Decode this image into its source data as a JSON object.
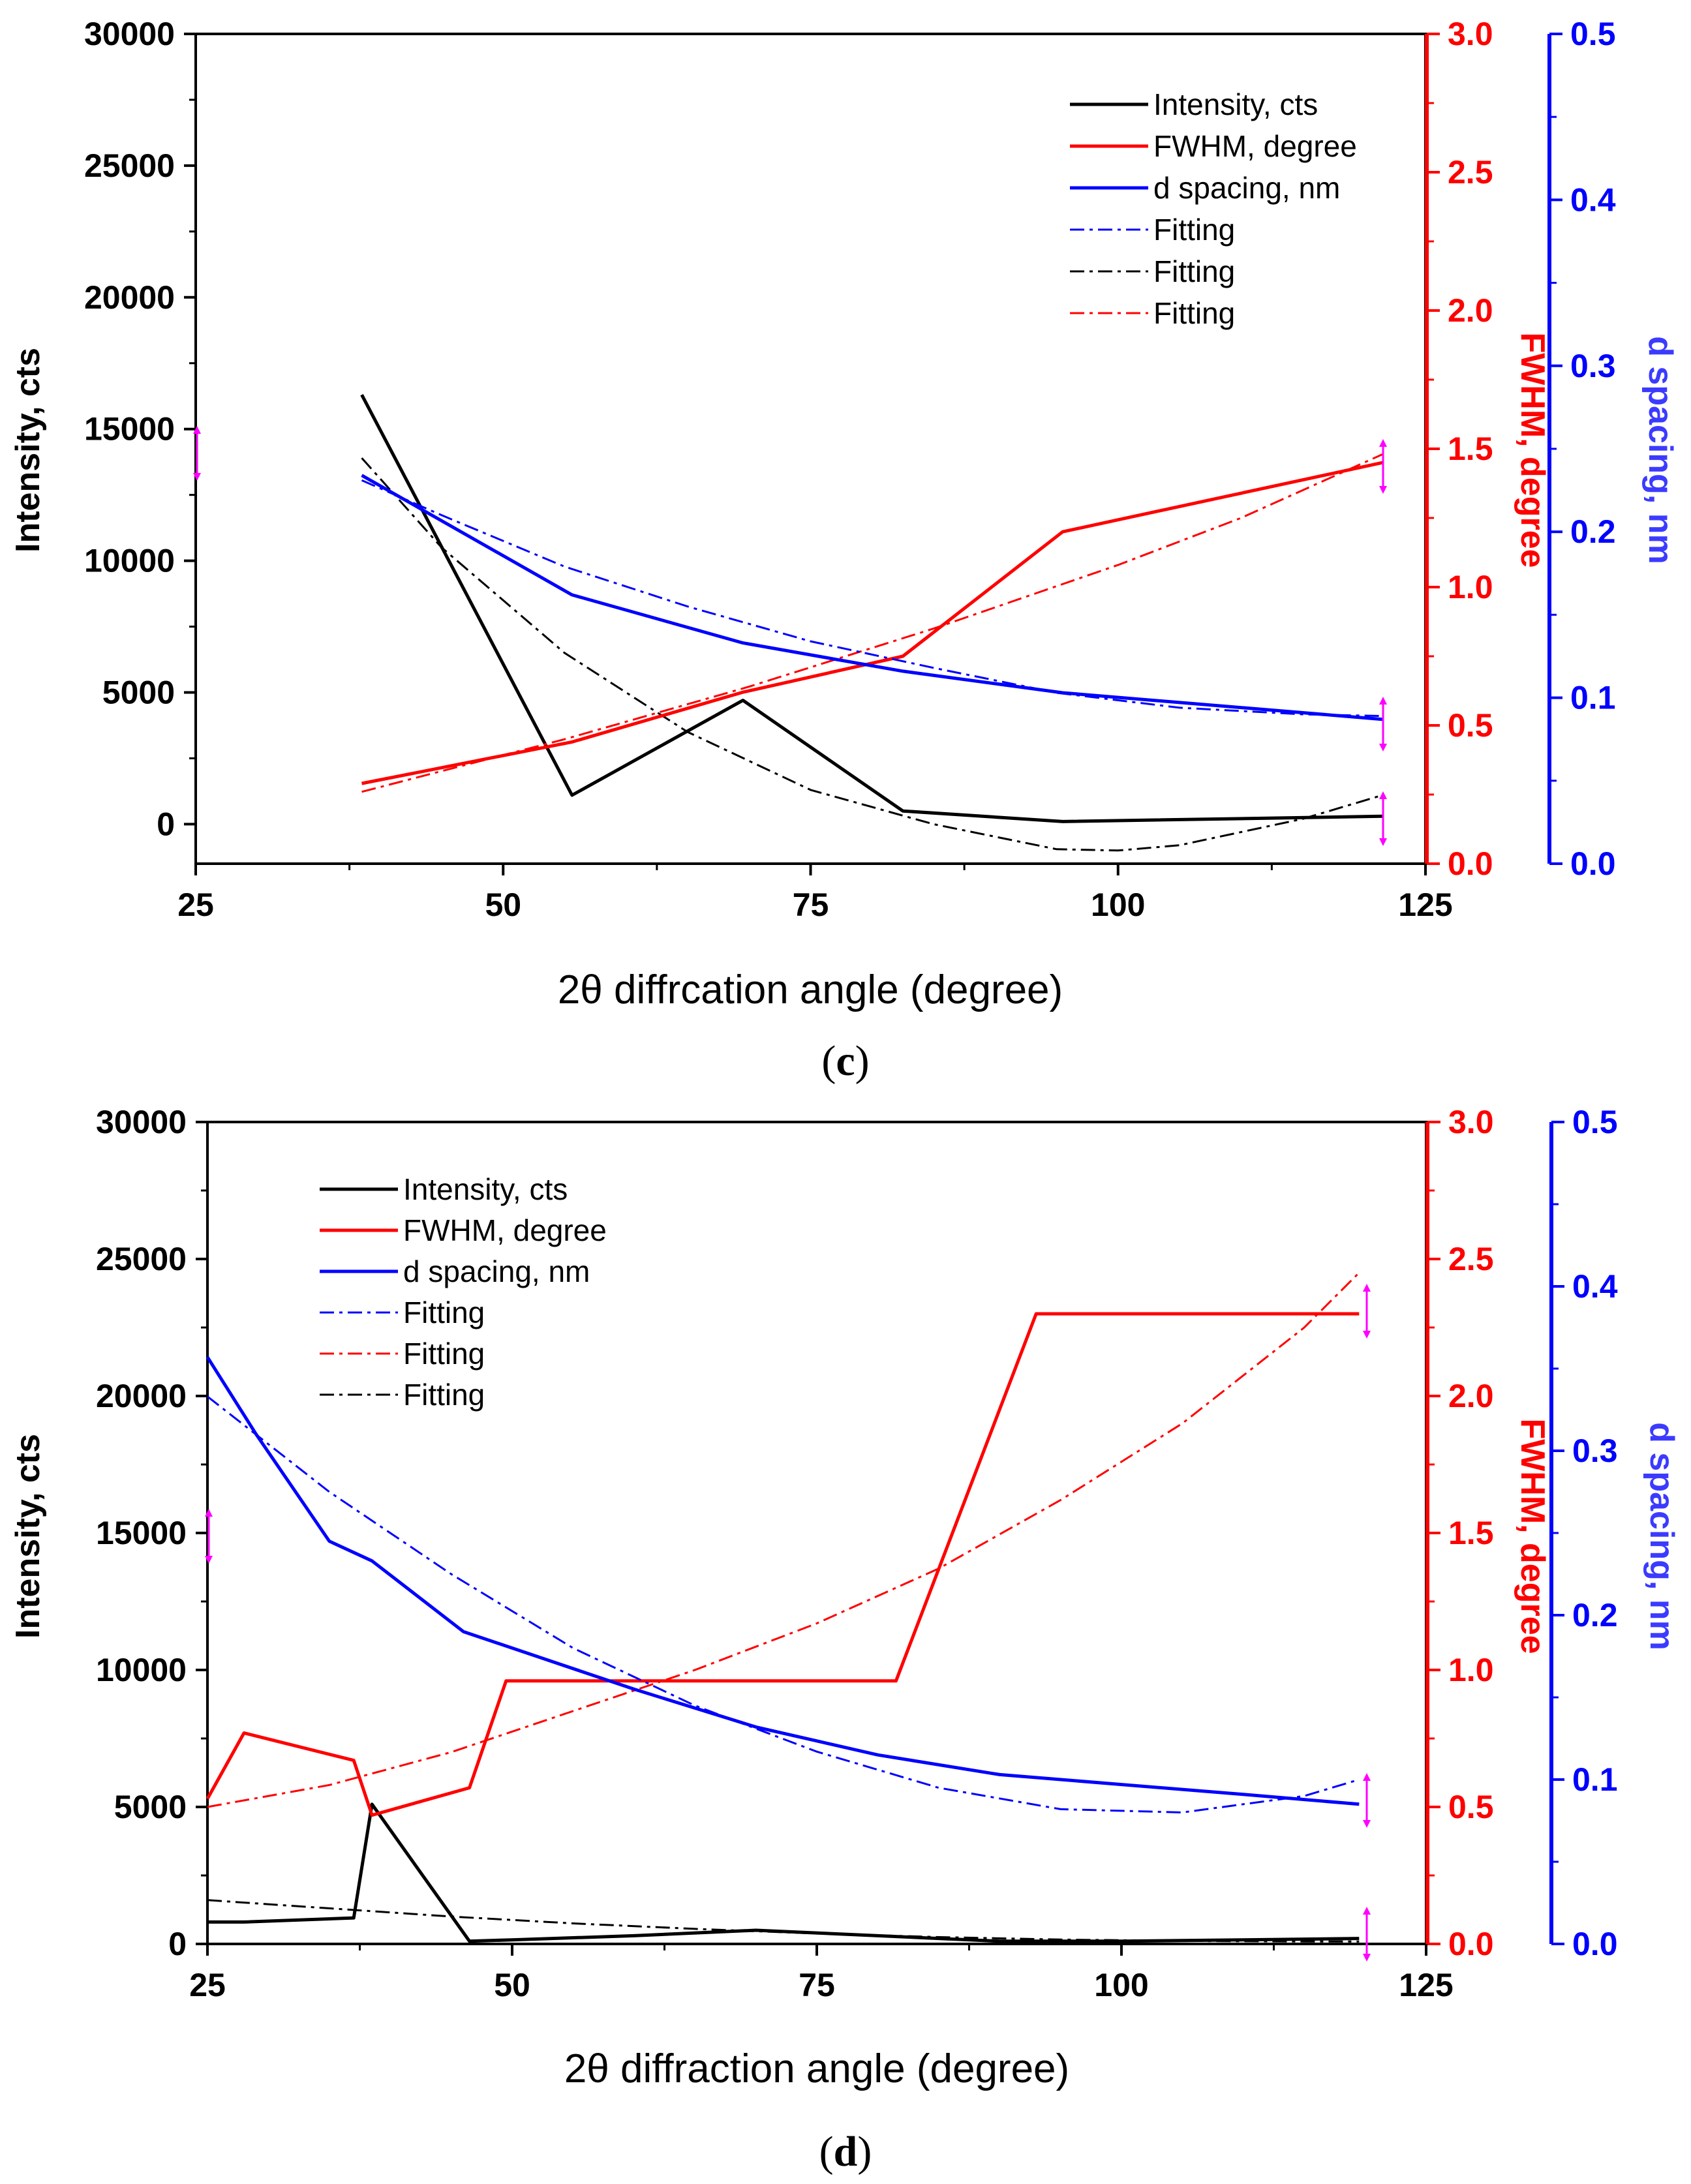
{
  "chart_data": [
    {
      "type": "line",
      "panel_label_open": "(",
      "panel_label_letter": "c",
      "panel_label_close": ")",
      "xlabel": "2θ diffrcation angle (degree)",
      "xlim": [
        25,
        125
      ],
      "x_ticks": [
        "25",
        "50",
        "75",
        "100",
        "125"
      ],
      "y_left": {
        "label": "Intensity, cts",
        "lim": [
          -1500,
          30000
        ],
        "ticks": [
          "0",
          "5000",
          "10000",
          "15000",
          "20000",
          "25000",
          "30000"
        ],
        "color": "#000000"
      },
      "y_right1": {
        "label": "FWHM, degree",
        "lim": [
          0,
          3.0
        ],
        "ticks": [
          "0.0",
          "0.5",
          "1.0",
          "1.5",
          "2.0",
          "2.5",
          "3.0"
        ],
        "color": "#ff0000"
      },
      "y_right2": {
        "label": "d spacing, nm",
        "lim": [
          0,
          0.5
        ],
        "ticks": [
          "0.0",
          "0.1",
          "0.2",
          "0.3",
          "0.4",
          "0.5"
        ],
        "color": "#0000ff"
      },
      "legend": [
        {
          "label": "Intensity, cts",
          "color": "#000000",
          "style": "solid"
        },
        {
          "label": "FWHM, degree",
          "color": "#ff0000",
          "style": "solid"
        },
        {
          "label": "d spacing, nm",
          "color": "#0000ff",
          "style": "solid"
        },
        {
          "label": "Fitting",
          "color": "#0000ff",
          "style": "dashdot"
        },
        {
          "label": "Fitting",
          "color": "#000000",
          "style": "dashdot"
        },
        {
          "label": "Fitting",
          "color": "#ff0000",
          "style": "dashdot"
        }
      ],
      "series": [
        {
          "name": "Intensity, cts",
          "axis": "left",
          "color": "#000000",
          "style": "solid",
          "x": [
            38.5,
            55.6,
            69.5,
            82.5,
            95.5,
            121.5
          ],
          "y": [
            16300,
            1100,
            4700,
            500,
            100,
            300
          ]
        },
        {
          "name": "Intensity fitting",
          "axis": "left",
          "color": "#000000",
          "style": "dashdot",
          "x": [
            38.5,
            45,
            55,
            65,
            75,
            85,
            95,
            100,
            105,
            115,
            121.5
          ],
          "y": [
            13900,
            10500,
            6500,
            3500,
            1300,
            0,
            -950,
            -1000,
            -800,
            200,
            1100
          ]
        },
        {
          "name": "FWHM, degree",
          "axis": "right1",
          "color": "#ff0000",
          "style": "solid",
          "x": [
            38.5,
            55.6,
            69.5,
            82.5,
            95.5,
            121.5
          ],
          "y": [
            0.29,
            0.44,
            0.62,
            0.75,
            1.2,
            1.45
          ]
        },
        {
          "name": "FWHM fitting",
          "axis": "right1",
          "color": "#ff0000",
          "style": "dashdot",
          "x": [
            38.5,
            55,
            70,
            85,
            100,
            110,
            121.5
          ],
          "y": [
            0.26,
            0.45,
            0.64,
            0.85,
            1.08,
            1.25,
            1.48
          ]
        },
        {
          "name": "d spacing, nm",
          "axis": "right2",
          "color": "#0000ff",
          "style": "solid",
          "x": [
            38.5,
            55.6,
            69.5,
            82.5,
            95.5,
            121.5
          ],
          "y": [
            0.234,
            0.162,
            0.133,
            0.116,
            0.103,
            0.087
          ]
        },
        {
          "name": "d spacing fitting",
          "axis": "right2",
          "color": "#0000ff",
          "style": "dashdot",
          "x": [
            38.5,
            45,
            55,
            65,
            75,
            85,
            95,
            105,
            115,
            121.5
          ],
          "y": [
            0.231,
            0.21,
            0.179,
            0.155,
            0.134,
            0.118,
            0.103,
            0.094,
            0.09,
            0.089
          ]
        }
      ]
    },
    {
      "type": "line",
      "panel_label_open": "(",
      "panel_label_letter": "d",
      "panel_label_close": ")",
      "xlabel": "2θ diffraction angle (degree)",
      "xlim": [
        25,
        125
      ],
      "x_ticks": [
        "25",
        "50",
        "75",
        "100",
        "125"
      ],
      "y_left": {
        "label": "Intensity, cts",
        "lim": [
          0,
          30000
        ],
        "ticks": [
          "0",
          "5000",
          "10000",
          "15000",
          "20000",
          "25000",
          "30000"
        ],
        "color": "#000000"
      },
      "y_right1": {
        "label": "FWHM, degree",
        "lim": [
          0,
          3.0
        ],
        "ticks": [
          "0.0",
          "0.5",
          "1.0",
          "1.5",
          "2.0",
          "2.5",
          "3.0"
        ],
        "color": "#ff0000"
      },
      "y_right2": {
        "label": "d spacing, nm",
        "lim": [
          0,
          0.5
        ],
        "ticks": [
          "0.0",
          "0.1",
          "0.2",
          "0.3",
          "0.4",
          "0.5"
        ],
        "color": "#0000ff"
      },
      "legend": [
        {
          "label": "Intensity, cts",
          "color": "#000000",
          "style": "solid"
        },
        {
          "label": "FWHM, degree",
          "color": "#ff0000",
          "style": "solid"
        },
        {
          "label": "d spacing, nm",
          "color": "#0000ff",
          "style": "solid"
        },
        {
          "label": "Fitting",
          "color": "#0000ff",
          "style": "dashdot"
        },
        {
          "label": "Fitting",
          "color": "#ff0000",
          "style": "dashdot"
        },
        {
          "label": "Fitting",
          "color": "#000000",
          "style": "dashdot"
        }
      ],
      "series": [
        {
          "name": "Intensity, cts",
          "axis": "left",
          "color": "#000000",
          "style": "solid",
          "x": [
            25,
            28,
            37,
            38.5,
            46.5,
            50,
            60,
            70,
            80,
            90,
            100,
            110,
            119.5
          ],
          "y": [
            800,
            800,
            950,
            5100,
            100,
            150,
            300,
            500,
            300,
            100,
            100,
            150,
            200
          ]
        },
        {
          "name": "Intensity fitting",
          "axis": "left",
          "color": "#000000",
          "style": "dashdot",
          "x": [
            25,
            35,
            45,
            55,
            65,
            75,
            85,
            95,
            105,
            115,
            119.5
          ],
          "y": [
            1600,
            1300,
            1000,
            750,
            550,
            380,
            250,
            160,
            110,
            90,
            90
          ]
        },
        {
          "name": "FWHM, degree",
          "axis": "right1",
          "color": "#ff0000",
          "style": "solid",
          "x": [
            25,
            28,
            37,
            38.5,
            46.5,
            49.5,
            81.5,
            93,
            119.5
          ],
          "y": [
            0.53,
            0.77,
            0.67,
            0.47,
            0.57,
            0.96,
            0.96,
            2.3,
            2.3
          ]
        },
        {
          "name": "FWHM fitting",
          "axis": "right1",
          "color": "#ff0000",
          "style": "dashdot",
          "x": [
            25,
            35,
            45,
            55,
            65,
            75,
            85,
            95,
            105,
            115,
            119.5
          ],
          "y": [
            0.5,
            0.58,
            0.7,
            0.85,
            1.0,
            1.17,
            1.37,
            1.62,
            1.9,
            2.25,
            2.45
          ]
        },
        {
          "name": "d spacing, nm",
          "axis": "right2",
          "color": "#0000ff",
          "style": "solid",
          "x": [
            25,
            29,
            35,
            38.5,
            46,
            50,
            60,
            70,
            80,
            90,
            100,
            110,
            119.5
          ],
          "y": [
            0.357,
            0.31,
            0.245,
            0.233,
            0.19,
            0.18,
            0.155,
            0.132,
            0.115,
            0.103,
            0.097,
            0.091,
            0.085
          ]
        },
        {
          "name": "d spacing fitting",
          "axis": "right2",
          "color": "#0000ff",
          "style": "dashdot",
          "x": [
            25,
            35,
            45,
            55,
            65,
            75,
            85,
            95,
            105,
            115,
            119.5
          ],
          "y": [
            0.333,
            0.275,
            0.225,
            0.18,
            0.145,
            0.117,
            0.095,
            0.082,
            0.08,
            0.09,
            0.1
          ]
        }
      ]
    }
  ]
}
